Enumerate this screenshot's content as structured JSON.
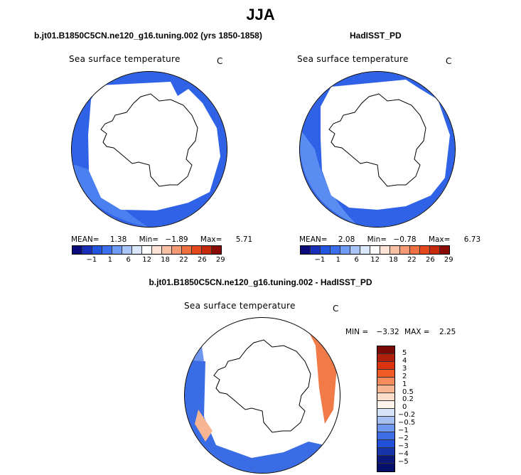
{
  "figure": {
    "title": "JJA"
  },
  "panels": [
    {
      "title": "b.jt01.B1850C5CN.ne120_g16.tuning.002 (yrs 1850-1858)",
      "variable": "Sea surface temperature",
      "unit": "C",
      "mean_label": "MEAN=",
      "mean": "1.38",
      "min_label": "Min=",
      "min": "−1.89",
      "max_label": "Max=",
      "max": "5.71",
      "colorbar_ticks": [
        "−1",
        "1",
        "6",
        "12",
        "18",
        "22",
        "26",
        "29"
      ]
    },
    {
      "title": "HadISST_PD",
      "variable": "Sea surface temperature",
      "unit": "C",
      "mean_label": "MEAN=",
      "mean": "2.08",
      "min_label": "Min=",
      "min": "−0.78",
      "max_label": "Max=",
      "max": "6.73",
      "colorbar_ticks": [
        "−1",
        "1",
        "6",
        "12",
        "18",
        "22",
        "26",
        "29"
      ]
    },
    {
      "title": "b.jt01.B1850C5CN.ne120_g16.tuning.002 - HadISST_PD",
      "variable": "Sea surface temperature",
      "unit": "C",
      "min_label": "MIN =",
      "min": "−3.32",
      "max_label": "MAX =",
      "max": "2.25",
      "colorbar_ticks": [
        "5",
        "4",
        "3",
        "2",
        "1",
        "0.5",
        "0.2",
        "0",
        "−0.2",
        "−0.5",
        "−1",
        "−2",
        "−3",
        "−4",
        "−5"
      ]
    }
  ],
  "colors": {
    "sst_scale": [
      "#0a0a7a",
      "#1a2fb8",
      "#2255e0",
      "#3c6ff0",
      "#6f9af5",
      "#a9c4f7",
      "#dbe7fb",
      "#ffffff",
      "#fde3d5",
      "#f8c0a5",
      "#f59975",
      "#f0703f",
      "#e5481c",
      "#c52a0d",
      "#8a0a05"
    ],
    "diff_scale": [
      "#7a0a05",
      "#b01e0c",
      "#dd3410",
      "#f05a25",
      "#f58a5a",
      "#f8b592",
      "#fcdccb",
      "#fff4ec",
      "#d7e3f8",
      "#a6c0f3",
      "#6f96ee",
      "#3e6ce5",
      "#2250d8",
      "#1735a8",
      "#0b1a7a"
    ],
    "land": "#ffffff",
    "ocean_cold": "#2f62e6"
  }
}
